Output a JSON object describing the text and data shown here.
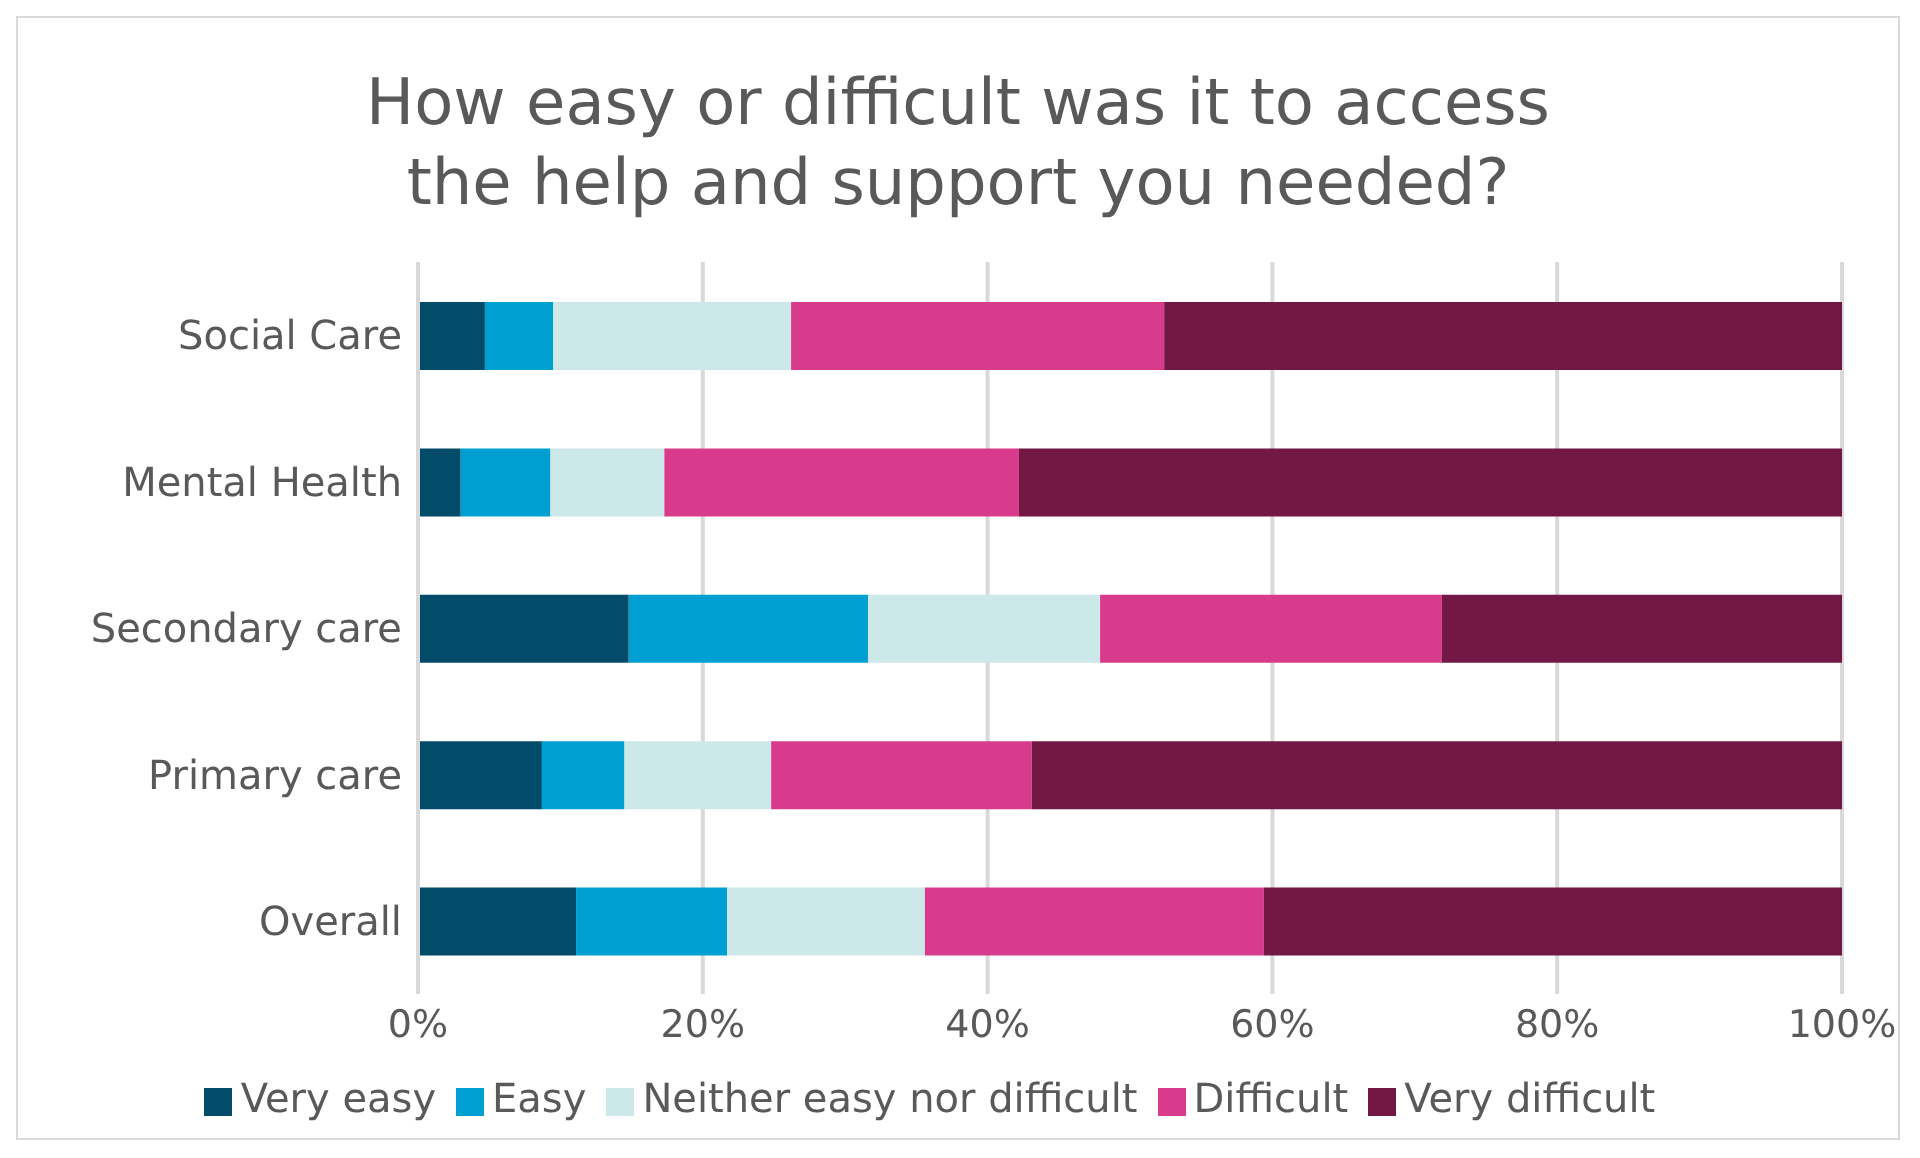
{
  "chart_data": {
    "type": "bar",
    "orientation": "horizontal",
    "stacked": true,
    "title": "How easy or difficult was it to access the help and support you needed?",
    "categories": [
      "Social Care",
      "Mental Health",
      "Secondary care",
      "Primary care",
      "Overall"
    ],
    "series": [
      {
        "name": "Very easy",
        "color": "#024b69",
        "values": [
          4.7,
          3.0,
          14.8,
          8.7,
          11.1
        ]
      },
      {
        "name": "Easy",
        "color": "#009fd1",
        "values": [
          4.8,
          6.3,
          16.8,
          5.8,
          10.6
        ]
      },
      {
        "name": "Neither easy nor difficult",
        "color": "#cce8e8",
        "values": [
          16.7,
          8.0,
          16.3,
          10.3,
          13.9
        ]
      },
      {
        "name": "Difficult",
        "color": "#d93b8c",
        "values": [
          26.2,
          24.9,
          24.0,
          18.3,
          23.8
        ]
      },
      {
        "name": "Very difficult",
        "color": "#731744",
        "values": [
          47.6,
          57.8,
          28.1,
          56.9,
          40.6
        ]
      }
    ],
    "xlim": [
      0,
      100
    ],
    "xticks": [
      {
        "value": 0,
        "label": "0%"
      },
      {
        "value": 20,
        "label": "20%"
      },
      {
        "value": 40,
        "label": "40%"
      },
      {
        "value": 60,
        "label": "60%"
      },
      {
        "value": 80,
        "label": "80%"
      },
      {
        "value": 100,
        "label": "100%"
      }
    ],
    "grid": "x",
    "legend": "bottom"
  }
}
